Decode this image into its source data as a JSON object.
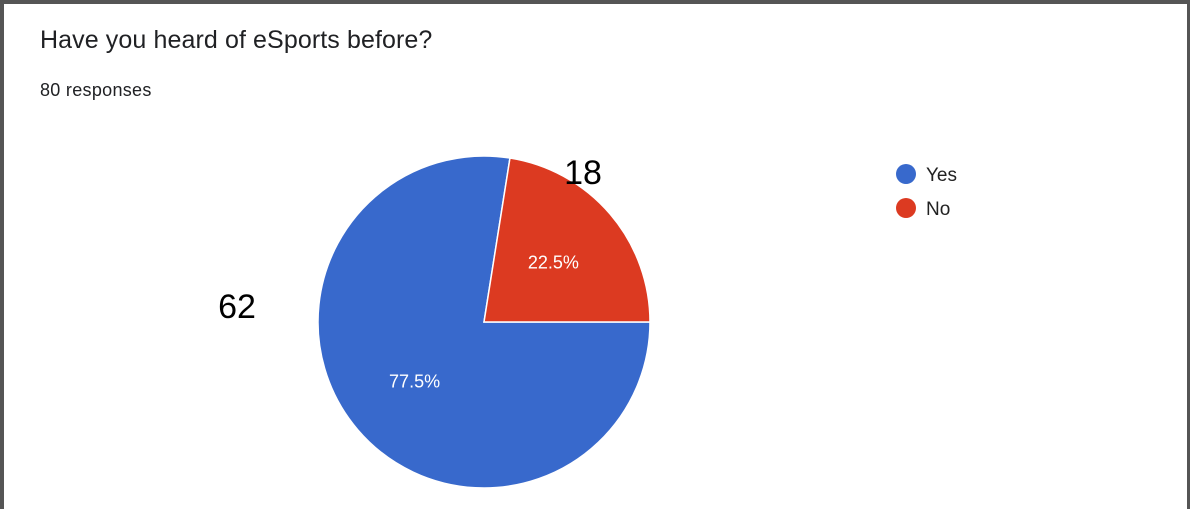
{
  "chart_data": {
    "type": "pie",
    "title": "Have you heard of eSports before?",
    "subtitle": "80 responses",
    "categories": [
      "Yes",
      "No"
    ],
    "values": [
      62,
      18
    ],
    "percent_labels": [
      "77.5%",
      "22.5%"
    ],
    "count_labels": [
      "62",
      "18"
    ],
    "colors": [
      "#3869cc",
      "#dc3a21"
    ],
    "legend": "right"
  }
}
